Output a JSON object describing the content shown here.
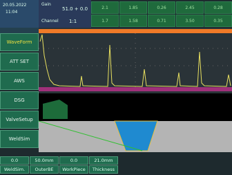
{
  "status": {
    "date": "20.05.2022",
    "time": "11:04"
  },
  "header": {
    "gain_label": "Gain",
    "gain": "51.0 + 0.0",
    "channel_label": "Channel",
    "channel": "1:1",
    "cells": [
      [
        "2.1",
        "1.85",
        "0.26",
        "2.45",
        "0.28"
      ],
      [
        "1.7",
        "1.58",
        "0.71",
        "3.50",
        "0.35"
      ]
    ]
  },
  "menu": [
    "WaveForm",
    "ATT SET",
    "AWS",
    "DSG",
    "ValveSetup",
    "WeldSim"
  ],
  "footer": {
    "values": [
      "0.0",
      "50.0mm",
      "0.0",
      "21.0mm"
    ],
    "labels": [
      "WeldSim.",
      "OuterBE",
      "WorkPiece",
      "Thickness"
    ]
  }
}
